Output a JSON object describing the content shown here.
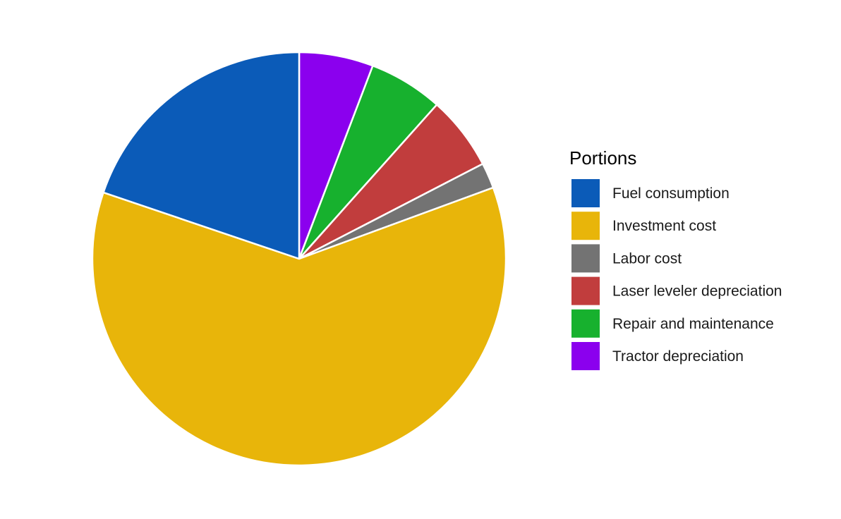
{
  "chart_data": {
    "type": "pie",
    "legend_title": "Portions",
    "legend_position": "right",
    "start_angle_deg": 0,
    "direction": "clockwise",
    "slices": [
      {
        "label": "Tractor depreciation",
        "value": 5.8,
        "color": "#8B00EE"
      },
      {
        "label": "Repair and maintenance",
        "value": 5.8,
        "color": "#17B12E"
      },
      {
        "label": "Laser leveler depreciation",
        "value": 5.8,
        "color": "#C13D3D"
      },
      {
        "label": "Labor cost",
        "value": 2.0,
        "color": "#737373"
      },
      {
        "label": "Investment cost",
        "value": 60.8,
        "color": "#E8B50A"
      },
      {
        "label": "Fuel consumption",
        "value": 19.8,
        "color": "#0B5BB8"
      }
    ],
    "legend_order": [
      "Fuel consumption",
      "Investment cost",
      "Labor cost",
      "Laser leveler depreciation",
      "Repair and maintenance",
      "Tractor depreciation"
    ]
  }
}
